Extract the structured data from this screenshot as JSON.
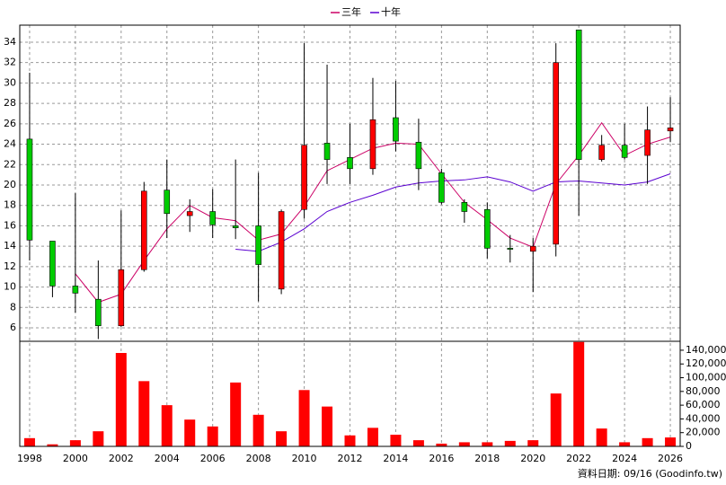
{
  "chart_data": [
    {
      "type": "candlestick",
      "ylim": [
        4.68,
        35.67
      ],
      "xlim": [
        1997.57,
        2026.43
      ],
      "yticks": [
        6,
        8,
        10,
        12,
        14,
        16,
        18,
        20,
        22,
        24,
        26,
        28,
        30,
        32,
        34
      ],
      "grid": true,
      "up_color": "#ff0000",
      "down_color": "#00cc00",
      "x": [
        1998,
        1999,
        2000,
        2001,
        2002,
        2003,
        2004,
        2005,
        2006,
        2007,
        2008,
        2009,
        2010,
        2011,
        2012,
        2013,
        2014,
        2015,
        2016,
        2017,
        2018,
        2019,
        2020,
        2021,
        2022,
        2023,
        2024,
        2025,
        2026
      ],
      "open": [
        24.5,
        14.5,
        10.1,
        8.8,
        6.2,
        11.7,
        19.5,
        17.0,
        17.4,
        16.0,
        16.0,
        9.8,
        17.6,
        24.1,
        22.7,
        21.6,
        26.6,
        24.2,
        21.2,
        18.3,
        17.6,
        13.8,
        13.5,
        14.2,
        35.2,
        22.5,
        23.9,
        22.9,
        25.3
      ],
      "high": [
        31.0,
        14.5,
        19.2,
        12.6,
        17.5,
        20.3,
        22.5,
        18.6,
        19.6,
        22.5,
        21.2,
        17.6,
        33.9,
        31.8,
        26.0,
        30.5,
        30.2,
        26.5,
        21.6,
        18.6,
        18.3,
        15.1,
        14.8,
        33.9,
        35.2,
        24.9,
        26.0,
        27.7,
        28.6
      ],
      "low": [
        12.6,
        9.0,
        7.5,
        4.9,
        6.1,
        11.5,
        14.8,
        15.4,
        14.8,
        14.7,
        8.6,
        9.3,
        16.7,
        20.1,
        20.1,
        21.0,
        23.3,
        19.5,
        18.1,
        16.3,
        12.8,
        12.4,
        9.5,
        13.0,
        17.0,
        22.3,
        22.5,
        20.1,
        24.2
      ],
      "close": [
        14.6,
        10.1,
        9.4,
        6.2,
        11.7,
        19.4,
        17.2,
        17.4,
        16.1,
        15.8,
        12.2,
        17.4,
        23.9,
        22.5,
        21.6,
        26.4,
        24.3,
        21.6,
        18.3,
        17.4,
        13.8,
        13.7,
        14.0,
        32.0,
        22.5,
        23.9,
        22.7,
        25.4,
        25.6
      ],
      "series": [
        {
          "name": "三年",
          "color": "#cc0066",
          "values": [
            null,
            null,
            11.3,
            8.5,
            9.3,
            12.6,
            15.7,
            18.0,
            16.8,
            16.5,
            14.6,
            15.2,
            17.9,
            21.4,
            22.5,
            23.6,
            24.1,
            24.0,
            21.1,
            18.3,
            16.6,
            14.8,
            13.9,
            20.1,
            22.9,
            26.1,
            22.9,
            24.0,
            24.7
          ]
        },
        {
          "name": "十年",
          "color": "#5a00d0",
          "values": [
            null,
            null,
            null,
            null,
            null,
            null,
            null,
            null,
            null,
            13.7,
            13.5,
            14.4,
            15.7,
            17.4,
            18.3,
            19.0,
            19.8,
            20.2,
            20.4,
            20.5,
            20.8,
            20.3,
            19.4,
            20.3,
            20.4,
            20.2,
            20.0,
            20.3,
            21.1
          ]
        }
      ]
    },
    {
      "type": "bar",
      "ylim": [
        0,
        153000
      ],
      "xlim": [
        1997.57,
        2026.43
      ],
      "color": "#ff0000",
      "grid": true,
      "yticks": [
        0,
        {
          "value": 20000,
          "label": "20,000"
        },
        {
          "value": 40000,
          "label": "40,000"
        },
        {
          "value": 60000,
          "label": "60,000"
        },
        {
          "value": 80000,
          "label": "80,000"
        },
        {
          "value": 100000,
          "label": "100,000"
        },
        {
          "value": 120000,
          "label": "120,000"
        },
        {
          "value": 140000,
          "label": "140,000"
        }
      ],
      "xticks": [
        1998,
        2000,
        2002,
        2004,
        2006,
        2008,
        2010,
        2012,
        2014,
        2016,
        2018,
        2020,
        2022,
        2024,
        2026
      ],
      "x": [
        1998,
        1999,
        2000,
        2001,
        2002,
        2003,
        2004,
        2005,
        2006,
        2007,
        2008,
        2009,
        2010,
        2011,
        2012,
        2013,
        2014,
        2015,
        2016,
        2017,
        2018,
        2019,
        2020,
        2021,
        2022,
        2023,
        2024,
        2025,
        2026
      ],
      "values": [
        12000,
        3000,
        9000,
        22000,
        136000,
        95000,
        60000,
        39000,
        29000,
        93000,
        46000,
        22000,
        82000,
        58000,
        16000,
        27000,
        17000,
        9000,
        4000,
        6000,
        6000,
        8000,
        9000,
        77000,
        152000,
        26000,
        6000,
        12000,
        13000
      ]
    }
  ],
  "source_note": "資料日期: 09/16 (Goodinfo.tw)"
}
